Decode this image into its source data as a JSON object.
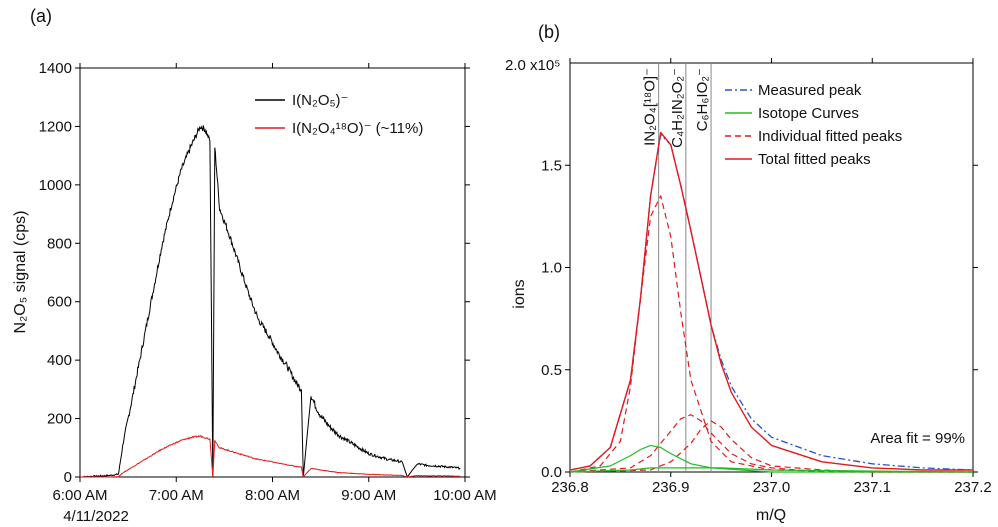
{
  "charts": {
    "panel_a": {
      "panel_label": "(a)",
      "type": "line",
      "ylabel": "N₂O₅ signal (cps)",
      "ylim": [
        0,
        1400
      ],
      "yticks": [
        "0",
        "200",
        "400",
        "600",
        "800",
        "1000",
        "1200",
        "1400"
      ],
      "xlim_hours": [
        6.0,
        10.0
      ],
      "xticks": [
        "6:00 AM",
        "7:00 AM",
        "8:00 AM",
        "9:00 AM",
        "10:00 AM"
      ],
      "date_label": "4/11/2022",
      "legend": [
        {
          "label": "I(N₂O₅)⁻",
          "color": "#000000"
        },
        {
          "label": "I(N₂O₄¹⁸O)⁻ (~11%)",
          "color": "#e41a1c"
        }
      ]
    },
    "panel_b": {
      "panel_label": "(b)",
      "type": "line",
      "ylabel": "ions",
      "xlabel": "m/Q",
      "xlim": [
        236.8,
        237.2
      ],
      "xticks": [
        "236.8",
        "236.9",
        "237.0",
        "237.1",
        "237.2"
      ],
      "ylim": [
        0,
        2.0
      ],
      "yticks": [
        "0.0",
        "0.5",
        "1.0",
        "1.5"
      ],
      "y_top_label": "2.0 x10⁵",
      "annotation": "Area fit = 99%",
      "peak_labels": [
        "IN₂O₄[¹⁸O]⁻",
        "C₄H₂IN₂O₂⁻",
        "C₆H₆IO₂⁻"
      ],
      "legend": [
        {
          "label": "Measured peak",
          "color": "#2b4fd6",
          "style": "dashdot"
        },
        {
          "label": "Isotope Curves",
          "color": "#22bb22",
          "style": "solid"
        },
        {
          "label": "Individual fitted peaks",
          "color": "#e41a1c",
          "style": "dashed"
        },
        {
          "label": "Total fitted peaks",
          "color": "#e41a1c",
          "style": "solid"
        }
      ]
    }
  },
  "chart_data": [
    {
      "type": "line",
      "x_unit": "time of day (h)",
      "ylim": [
        0,
        1400
      ],
      "series": [
        {
          "name": "I(N₂O₅)⁻",
          "x": [
            6.0,
            6.3,
            6.4,
            6.45,
            6.55,
            6.65,
            6.75,
            6.85,
            6.95,
            7.05,
            7.15,
            7.25,
            7.3,
            7.35,
            7.38,
            7.4,
            7.45,
            7.55,
            7.65,
            7.75,
            7.85,
            7.95,
            8.05,
            8.15,
            8.25,
            8.3,
            8.32,
            8.4,
            8.45,
            8.5,
            8.6,
            8.7,
            8.8,
            8.9,
            9.0,
            9.1,
            9.2,
            9.3,
            9.35,
            9.4,
            9.5,
            9.6,
            9.7,
            9.8,
            9.9,
            9.95
          ],
          "y": [
            0,
            5,
            10,
            120,
            280,
            450,
            620,
            790,
            930,
            1050,
            1130,
            1200,
            1190,
            1150,
            0,
            1130,
            920,
            830,
            730,
            630,
            540,
            490,
            430,
            380,
            320,
            300,
            0,
            280,
            240,
            210,
            170,
            140,
            120,
            100,
            80,
            70,
            60,
            55,
            50,
            0,
            45,
            40,
            38,
            35,
            32,
            30
          ]
        },
        {
          "name": "I(N₂O₄¹⁸O)⁻ (~11%)",
          "x": [
            6.0,
            6.3,
            6.4,
            6.45,
            6.55,
            6.65,
            6.75,
            6.85,
            6.95,
            7.05,
            7.15,
            7.25,
            7.3,
            7.35,
            7.38,
            7.4,
            7.45,
            7.55,
            7.65,
            7.75,
            7.85,
            7.95,
            8.05,
            8.15,
            8.25,
            8.3,
            8.32,
            8.4,
            8.45,
            8.5,
            8.6,
            8.7,
            8.8,
            8.9,
            9.0,
            9.1,
            9.2,
            9.3,
            9.35,
            9.4,
            9.5,
            9.6,
            9.7,
            9.8,
            9.9,
            9.95
          ],
          "y": [
            0,
            0,
            2,
            15,
            35,
            55,
            75,
            95,
            110,
            125,
            135,
            140,
            135,
            130,
            0,
            125,
            100,
            90,
            80,
            70,
            60,
            55,
            48,
            42,
            36,
            34,
            0,
            30,
            27,
            24,
            19,
            15,
            13,
            11,
            9,
            8,
            7,
            6,
            5,
            0,
            5,
            4,
            4,
            4,
            3,
            3
          ]
        }
      ]
    },
    {
      "type": "line",
      "xlabel": "m/Q",
      "ylabel": "ions",
      "xlim": [
        236.8,
        237.2
      ],
      "ylim": [
        0,
        2.0
      ],
      "y_scale": "x10^5",
      "peak_centers": [
        236.888,
        236.915,
        236.94
      ],
      "series": [
        {
          "name": "Measured peak",
          "x": [
            236.8,
            236.82,
            236.84,
            236.86,
            236.87,
            236.88,
            236.89,
            236.9,
            236.91,
            236.92,
            236.93,
            236.94,
            236.95,
            236.96,
            236.98,
            237.0,
            237.05,
            237.1,
            237.15,
            237.2
          ],
          "y": [
            0.01,
            0.03,
            0.12,
            0.45,
            0.85,
            1.35,
            1.65,
            1.6,
            1.4,
            1.18,
            0.95,
            0.72,
            0.55,
            0.42,
            0.26,
            0.17,
            0.08,
            0.04,
            0.02,
            0.01
          ]
        },
        {
          "name": "Total fitted peaks",
          "x": [
            236.8,
            236.82,
            236.84,
            236.86,
            236.87,
            236.88,
            236.89,
            236.9,
            236.91,
            236.92,
            236.93,
            236.94,
            236.95,
            236.96,
            236.98,
            237.0,
            237.05,
            237.1,
            237.15,
            237.2
          ],
          "y": [
            0.01,
            0.03,
            0.12,
            0.45,
            0.85,
            1.35,
            1.66,
            1.6,
            1.4,
            1.18,
            0.95,
            0.72,
            0.53,
            0.39,
            0.22,
            0.13,
            0.05,
            0.02,
            0.01,
            0.01
          ]
        },
        {
          "name": "Individual fitted peak 1",
          "x": [
            236.8,
            236.83,
            236.85,
            236.86,
            236.87,
            236.88,
            236.89,
            236.9,
            236.91,
            236.92,
            236.94,
            236.96,
            237.0,
            237.1,
            237.2
          ],
          "y": [
            0.0,
            0.03,
            0.15,
            0.42,
            0.85,
            1.25,
            1.35,
            1.15,
            0.78,
            0.45,
            0.15,
            0.05,
            0.01,
            0.0,
            0.0
          ]
        },
        {
          "name": "Individual fitted peak 2",
          "x": [
            236.8,
            236.86,
            236.88,
            236.9,
            236.91,
            236.92,
            236.93,
            236.94,
            236.96,
            236.98,
            237.0,
            237.05,
            237.1,
            237.2
          ],
          "y": [
            0.0,
            0.02,
            0.08,
            0.2,
            0.26,
            0.28,
            0.25,
            0.19,
            0.09,
            0.04,
            0.02,
            0.0,
            0.0,
            0.0
          ]
        },
        {
          "name": "Individual fitted peak 3",
          "x": [
            236.8,
            236.88,
            236.9,
            236.92,
            236.93,
            236.94,
            236.95,
            236.96,
            236.98,
            237.0,
            237.05,
            237.1,
            237.2
          ],
          "y": [
            0.0,
            0.01,
            0.05,
            0.14,
            0.21,
            0.25,
            0.22,
            0.16,
            0.07,
            0.03,
            0.01,
            0.0,
            0.0
          ]
        },
        {
          "name": "Isotope Curves",
          "x": [
            236.8,
            236.84,
            236.86,
            236.87,
            236.88,
            236.89,
            236.9,
            236.92,
            236.94,
            236.97,
            237.0,
            237.1,
            237.2
          ],
          "y": [
            0.0,
            0.03,
            0.08,
            0.11,
            0.13,
            0.12,
            0.09,
            0.04,
            0.02,
            0.01,
            0.0,
            0.0,
            0.0
          ]
        },
        {
          "name": "Isotope baseline",
          "x": [
            236.8,
            236.86,
            236.88,
            236.9,
            236.95,
            237.0,
            237.2
          ],
          "y": [
            0.0,
            0.01,
            0.02,
            0.02,
            0.02,
            0.01,
            0.0
          ]
        }
      ]
    }
  ]
}
